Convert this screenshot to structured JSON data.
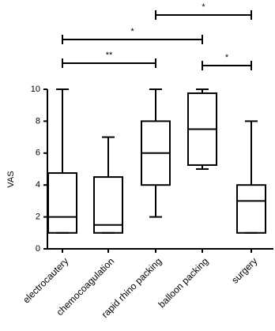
{
  "chart_data": {
    "type": "box",
    "y_label": "VAS",
    "categories": [
      "electrocautery",
      "chemocoagulation",
      "rapid rhino packing",
      "balloon packing",
      "surgery"
    ],
    "boxes": [
      {
        "min": 1,
        "q1": 1,
        "median": 2,
        "q3": 4.75,
        "max": 10
      },
      {
        "min": 1,
        "q1": 1,
        "median": 1.5,
        "q3": 4.5,
        "max": 7
      },
      {
        "min": 2,
        "q1": 4,
        "median": 6,
        "q3": 8,
        "max": 10
      },
      {
        "min": 5,
        "q1": 5.25,
        "median": 7.5,
        "q3": 9.75,
        "max": 10
      },
      {
        "min": 1,
        "q1": 1,
        "median": 3,
        "q3": 4,
        "max": 8
      }
    ],
    "color": "#000000",
    "ylim": [
      0,
      10
    ],
    "yticks": [
      0,
      2,
      4,
      6,
      8,
      10
    ],
    "annotations": [
      {
        "label": "*",
        "from": "rapid rhino packing",
        "to": "surgery"
      },
      {
        "label": "*",
        "from": "electrocautery",
        "to": "balloon packing"
      },
      {
        "label": "**",
        "from": "electrocautery",
        "to": "rapid rhino packing"
      },
      {
        "label": "*",
        "from": "balloon packing",
        "to": "surgery"
      }
    ]
  }
}
